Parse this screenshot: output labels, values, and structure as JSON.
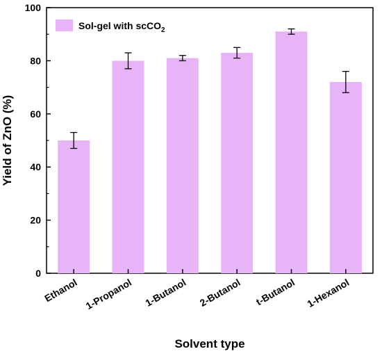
{
  "chart_data": {
    "type": "bar",
    "title": "",
    "xlabel": "Solvent type",
    "ylabel": "Yield of ZnO (%)",
    "ylim": [
      0,
      100
    ],
    "yticks": [
      0,
      20,
      40,
      60,
      80,
      100
    ],
    "categories": [
      "Ethanol",
      "1-Propanol",
      "1-Butanol",
      "2-Butanol",
      "t-Butanol",
      "1-Hexanol"
    ],
    "series": [
      {
        "name": "Sol-gel with scCO2",
        "values": [
          50,
          80,
          81,
          83,
          91,
          72
        ],
        "errors": [
          3,
          3,
          1,
          2,
          1,
          4
        ],
        "color": "#e8b4f8"
      }
    ],
    "legend_position": "top-left",
    "grid": false
  },
  "legend": {
    "label_main": "Sol-gel with scCO",
    "label_sub": "2"
  }
}
